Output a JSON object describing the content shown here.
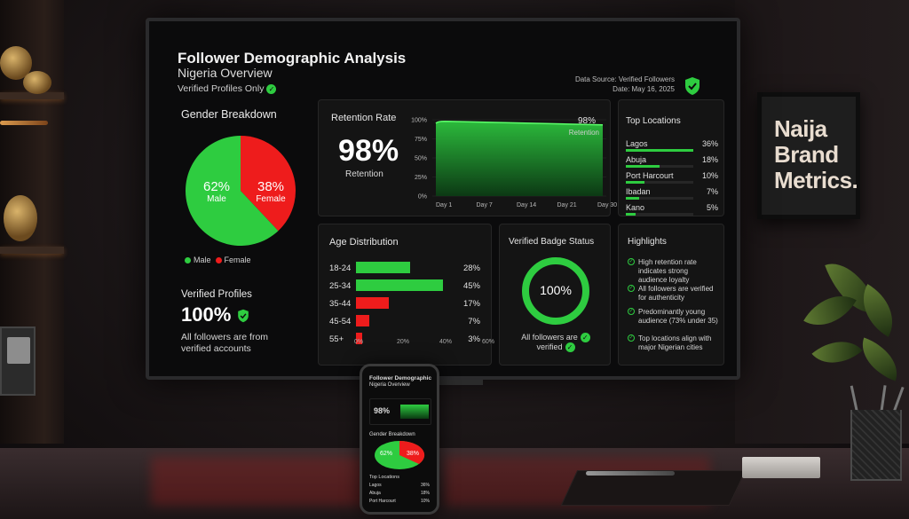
{
  "dashboard": {
    "title": "Follower Demographic Analysis",
    "subtitle": "Nigeria Overview",
    "verified_only": "Verified Profiles Only",
    "data_source": "Data Source: Verified Followers",
    "date": "Date: May 16, 2025"
  },
  "gender": {
    "title": "Gender Breakdown",
    "male_pct": "62%",
    "male_label": "Male",
    "female_pct": "38%",
    "female_label": "Female",
    "legend_male": "Male",
    "legend_female": "Female",
    "male_value": 62,
    "female_value": 38,
    "male_color": "#2ecc40",
    "female_color": "#ee1c1c"
  },
  "verified_profiles": {
    "title": "Verified Profiles",
    "value": "100%",
    "description_line1": "All followers are from",
    "description_line2": "verified accounts"
  },
  "retention": {
    "title": "Retention Rate",
    "value": "98%",
    "label": "Retention",
    "chart_value": "98%",
    "chart_label": "Retention",
    "y_ticks": [
      "100%",
      "75%",
      "50%",
      "25%",
      "0%"
    ],
    "x_ticks": [
      "Day 1",
      "Day 7",
      "Day 14",
      "Day 21",
      "Day 30"
    ]
  },
  "top_locations": {
    "title": "Top Locations",
    "items": [
      {
        "name": "Lagos",
        "pct": "36%",
        "value": 36
      },
      {
        "name": "Abuja",
        "pct": "18%",
        "value": 18
      },
      {
        "name": "Port Harcourt",
        "pct": "10%",
        "value": 10
      },
      {
        "name": "Ibadan",
        "pct": "7%",
        "value": 7
      },
      {
        "name": "Kano",
        "pct": "5%",
        "value": 5
      }
    ]
  },
  "age": {
    "title": "Age Distribution",
    "rows": [
      {
        "label": "18-24",
        "pct": "28%",
        "value": 28,
        "color": "#2ecc40"
      },
      {
        "label": "25-34",
        "pct": "45%",
        "value": 45,
        "color": "#2ecc40"
      },
      {
        "label": "35-44",
        "pct": "17%",
        "value": 17,
        "color": "#ee1c1c"
      },
      {
        "label": "45-54",
        "pct": "7%",
        "value": 7,
        "color": "#ee1c1c"
      },
      {
        "label": "55+",
        "pct": "3%",
        "value": 3,
        "color": "#ee1c1c"
      }
    ],
    "axis": [
      "0%",
      "20%",
      "40%",
      "60%"
    ]
  },
  "badge": {
    "title": "Verified Badge Status",
    "value": "100%",
    "caption_line1": "All followers are",
    "caption_line2": "verified"
  },
  "highlights": {
    "title": "Highlights",
    "items": [
      "High retention rate indicates strong audience loyalty",
      "All followers are verified for authenticity",
      "Predominantly young audience (73% under 35)",
      "Top locations align with major Nigerian cities"
    ]
  },
  "poster": {
    "line1": "Naija",
    "line2": "Brand",
    "line3": "Metrics."
  },
  "phone": {
    "title_line1": "Follower Demographic",
    "title_line2": "Nigeria Overview",
    "retention_pct": "98%",
    "gender_title": "Gender Breakdown",
    "male_pct": "62%",
    "female_pct": "38%",
    "locations_title": "Top Locations",
    "loc1": "Lagos",
    "loc1_pct": "36%",
    "loc2": "Abuja",
    "loc2_pct": "18%",
    "loc3": "Port Harcourt",
    "loc3_pct": "10%"
  }
}
